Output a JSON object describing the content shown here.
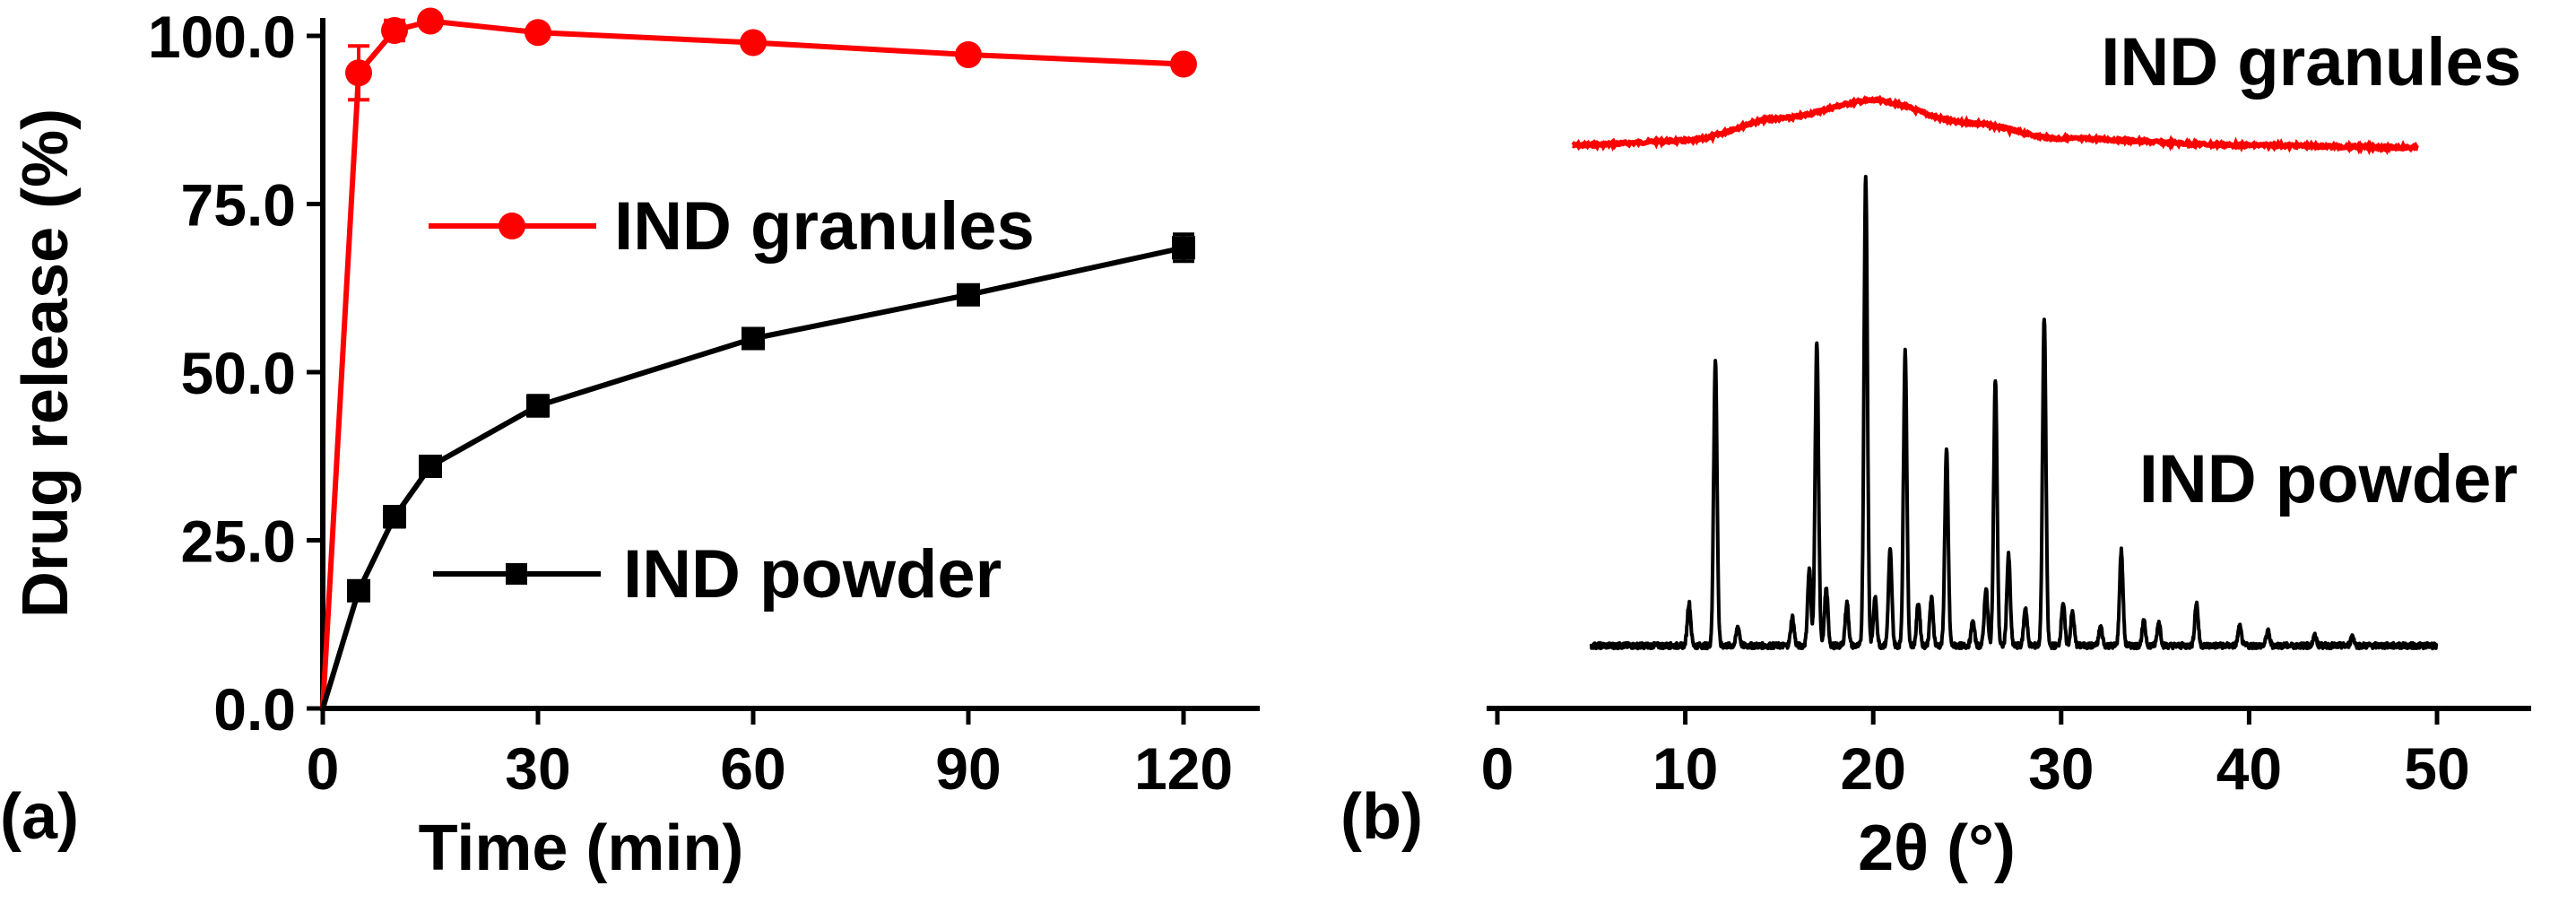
{
  "colors": {
    "granules": "#ff0000",
    "powder": "#000000",
    "axis": "#000000"
  },
  "chart_data": [
    {
      "type": "line",
      "panel_label": "(a)",
      "xlabel": "Time (min)",
      "ylabel": "Drug release (%)",
      "xlim": [
        0,
        125
      ],
      "ylim": [
        0,
        103
      ],
      "xticks": [
        "0",
        "30",
        "60",
        "90",
        "120"
      ],
      "yticks": [
        "0.0",
        "25.0",
        "50.0",
        "75.0",
        "100.0"
      ],
      "grid": false,
      "legend_placement": "center",
      "series": [
        {
          "name": "IND granules",
          "color": "#ff0000",
          "marker": "circle",
          "x": [
            0,
            5,
            10,
            15,
            30,
            60,
            90,
            120
          ],
          "y": [
            0,
            94.5,
            100.8,
            102.2,
            100.5,
            99.0,
            97.2,
            95.8
          ],
          "err": [
            0,
            4.0,
            1.5,
            1.0,
            0.8,
            0.8,
            0.8,
            1.0
          ]
        },
        {
          "name": "IND powder",
          "color": "#000000",
          "marker": "square",
          "x": [
            0,
            5,
            10,
            15,
            30,
            60,
            90,
            120
          ],
          "y": [
            0,
            17.5,
            28.5,
            36.0,
            45.0,
            55.0,
            61.5,
            68.5
          ],
          "err": [
            0,
            1.0,
            1.5,
            1.0,
            1.5,
            1.0,
            1.0,
            2.0
          ]
        }
      ]
    },
    {
      "type": "line",
      "panel_label": "(b)",
      "xlabel": "2θ (°)",
      "xlim": [
        0,
        55
      ],
      "xticks": [
        "0",
        "10",
        "20",
        "30",
        "40",
        "50"
      ],
      "grid": false,
      "series": [
        {
          "name": "IND granules",
          "color": "#ff0000",
          "x_range": [
            4,
            49
          ],
          "description_points": [
            [
              4,
              0.0
            ],
            [
              10,
              0.1
            ],
            [
              15,
              0.6
            ],
            [
              20,
              1.0
            ],
            [
              25,
              0.5
            ],
            [
              30,
              0.15
            ],
            [
              40,
              0.0
            ],
            [
              49,
              -0.05
            ]
          ]
        },
        {
          "name": "IND powder",
          "color": "#000000",
          "x_range": [
            5,
            50
          ],
          "peaks": [
            {
              "x": 10.2,
              "h": 9
            },
            {
              "x": 11.6,
              "h": 60
            },
            {
              "x": 12.8,
              "h": 4
            },
            {
              "x": 15.7,
              "h": 6
            },
            {
              "x": 16.6,
              "h": 16
            },
            {
              "x": 17.0,
              "h": 64
            },
            {
              "x": 17.5,
              "h": 12
            },
            {
              "x": 18.6,
              "h": 9
            },
            {
              "x": 19.6,
              "h": 99
            },
            {
              "x": 20.1,
              "h": 10
            },
            {
              "x": 20.9,
              "h": 20
            },
            {
              "x": 21.7,
              "h": 62
            },
            {
              "x": 22.4,
              "h": 9
            },
            {
              "x": 23.1,
              "h": 10
            },
            {
              "x": 23.9,
              "h": 41
            },
            {
              "x": 25.3,
              "h": 5
            },
            {
              "x": 26.0,
              "h": 12
            },
            {
              "x": 26.5,
              "h": 56
            },
            {
              "x": 27.2,
              "h": 19
            },
            {
              "x": 28.1,
              "h": 8
            },
            {
              "x": 29.1,
              "h": 69
            },
            {
              "x": 30.1,
              "h": 9
            },
            {
              "x": 30.6,
              "h": 7
            },
            {
              "x": 32.1,
              "h": 4
            },
            {
              "x": 33.2,
              "h": 20
            },
            {
              "x": 34.4,
              "h": 5
            },
            {
              "x": 35.2,
              "h": 5
            },
            {
              "x": 37.2,
              "h": 9
            },
            {
              "x": 39.5,
              "h": 4
            },
            {
              "x": 41.0,
              "h": 3
            },
            {
              "x": 43.5,
              "h": 2
            },
            {
              "x": 45.5,
              "h": 2
            }
          ]
        }
      ]
    }
  ]
}
